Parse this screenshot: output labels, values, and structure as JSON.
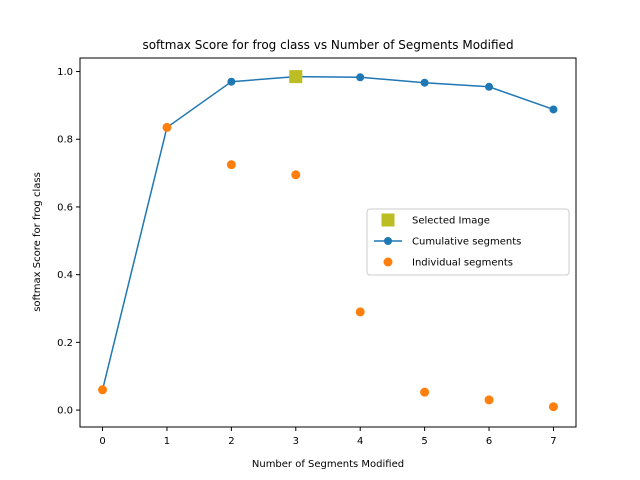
{
  "chart_data": {
    "type": "line",
    "title": "softmax Score for frog class vs Number of Segments Modified",
    "xlabel": "Number of Segments Modified",
    "ylabel": "softmax Score for frog class",
    "xlim": [
      -0.35,
      7.35
    ],
    "ylim": [
      -0.05,
      1.04
    ],
    "x_ticks": [
      "0",
      "1",
      "2",
      "3",
      "4",
      "5",
      "6",
      "7"
    ],
    "y_ticks": [
      "0.0",
      "0.2",
      "0.4",
      "0.6",
      "0.8",
      "1.0"
    ],
    "grid": false,
    "legend_position": "center-right",
    "series": [
      {
        "name": "Selected Image",
        "kind": "marker-square",
        "color": "#bcbd22",
        "x": [
          3
        ],
        "y": [
          0.985
        ]
      },
      {
        "name": "Cumulative segments",
        "kind": "line-marker",
        "color": "#1f77b4",
        "x": [
          0,
          1,
          2,
          3,
          4,
          5,
          6,
          7
        ],
        "y": [
          0.06,
          0.835,
          0.97,
          0.985,
          0.983,
          0.967,
          0.955,
          0.888
        ]
      },
      {
        "name": "Individual segments",
        "kind": "scatter",
        "color": "#ff7f0e",
        "x": [
          0,
          1,
          2,
          3,
          4,
          5,
          6,
          7
        ],
        "y": [
          0.06,
          0.835,
          0.725,
          0.695,
          0.29,
          0.053,
          0.03,
          0.01
        ]
      }
    ]
  }
}
